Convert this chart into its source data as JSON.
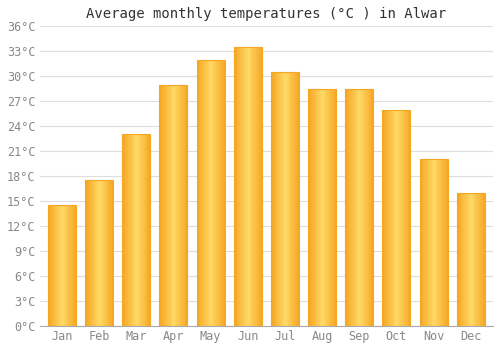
{
  "title": "Average monthly temperatures (°C ) in Alwar",
  "months": [
    "Jan",
    "Feb",
    "Mar",
    "Apr",
    "May",
    "Jun",
    "Jul",
    "Aug",
    "Sep",
    "Oct",
    "Nov",
    "Dec"
  ],
  "temperatures": [
    14.5,
    17.5,
    23.0,
    29.0,
    32.0,
    33.5,
    30.5,
    28.5,
    28.5,
    26.0,
    20.0,
    16.0
  ],
  "bar_color_center": "#FFD966",
  "bar_color_edge": "#F5A623",
  "ylim": [
    0,
    36
  ],
  "yticks": [
    0,
    3,
    6,
    9,
    12,
    15,
    18,
    21,
    24,
    27,
    30,
    33,
    36
  ],
  "ytick_labels": [
    "0°C",
    "3°C",
    "6°C",
    "9°C",
    "12°C",
    "15°C",
    "18°C",
    "21°C",
    "24°C",
    "27°C",
    "30°C",
    "33°C",
    "36°C"
  ],
  "background_color": "#ffffff",
  "grid_color": "#dddddd",
  "title_fontsize": 10,
  "tick_fontsize": 8.5,
  "tick_color": "#888888",
  "bar_width": 0.75
}
